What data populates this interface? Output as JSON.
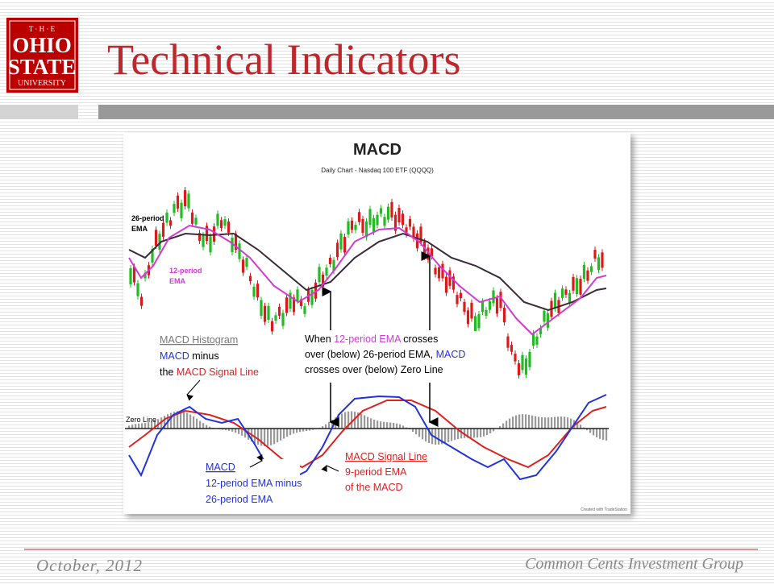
{
  "header": {
    "logo": {
      "line1": "T · H · E",
      "line2": "OHIO",
      "line3": "STATE",
      "line4": "UNIVERSITY"
    },
    "title": "Technical Indicators"
  },
  "figure": {
    "title": "MACD",
    "subtitle": "Daily Chart - Nasdaq 100 ETF (QQQQ)",
    "ema26_label": [
      "26-period",
      "EMA"
    ],
    "ema12_label": [
      "12-period",
      "EMA"
    ],
    "histogram_note": {
      "heading": "MACD Histogram",
      "line2": [
        "MACD",
        " minus"
      ],
      "line3": [
        "the ",
        "MACD Signal Line"
      ]
    },
    "crossover_note": {
      "line1": [
        "When ",
        "12-period EMA",
        " crosses"
      ],
      "line2": [
        "over (below) 26-period EMA, ",
        "MACD"
      ],
      "line3": "crosses over (below) Zero Line"
    },
    "zero_line": "Zero Line",
    "macd_note": [
      "MACD",
      "12-period EMA minus",
      "26-period EMA"
    ],
    "signal_note": [
      "MACD Signal Line",
      "9-period EMA",
      "of the MACD"
    ],
    "credit": "Created with TradeStation"
  },
  "footer": {
    "date": "October, 2012",
    "organization": "Common Cents Investment Group"
  }
}
